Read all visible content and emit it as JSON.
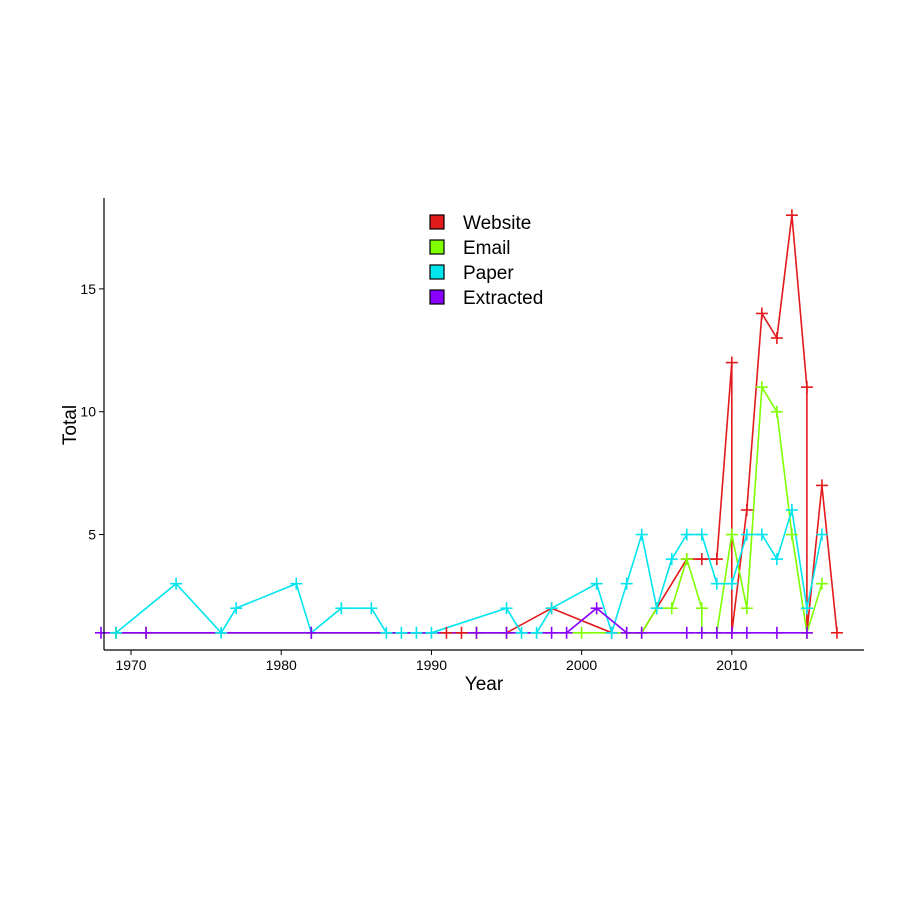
{
  "chart_data": {
    "type": "line",
    "title": "",
    "xlabel": "Year",
    "ylabel": "Total",
    "xlim": [
      1968.2,
      2018.8
    ],
    "ylim": [
      0.3,
      18.7
    ],
    "x_ticks": [
      1970,
      1980,
      1990,
      2000,
      2010
    ],
    "y_ticks": [
      5,
      10,
      15
    ],
    "grid": false,
    "marker": "plus",
    "legend": {
      "placement": "top-center",
      "entries": [
        "Website",
        "Email",
        "Paper",
        "Extracted"
      ]
    },
    "series": [
      {
        "name": "Website",
        "color": "#e31a1c",
        "points": [
          [
            1969,
            1
          ],
          [
            1971,
            1
          ],
          [
            1982,
            1
          ],
          [
            1991,
            1
          ],
          [
            1992,
            1
          ],
          [
            1993,
            1
          ],
          [
            1995,
            1
          ],
          [
            1998,
            2
          ],
          [
            2002,
            1
          ],
          [
            2004,
            1
          ],
          [
            2005,
            2
          ],
          [
            2007,
            4
          ],
          [
            2008,
            4
          ],
          [
            2009,
            4
          ],
          [
            2010,
            12
          ],
          [
            2010,
            1
          ],
          [
            2011,
            6
          ],
          [
            2012,
            14
          ],
          [
            2013,
            13
          ],
          [
            2014,
            18
          ],
          [
            2015,
            11
          ],
          [
            2015,
            1
          ],
          [
            2016,
            7
          ],
          [
            2017,
            1
          ]
        ]
      },
      {
        "name": "Email",
        "color": "#7fff00",
        "points": [
          [
            1969,
            1
          ],
          [
            1971,
            1
          ],
          [
            1982,
            1
          ],
          [
            1993,
            1
          ],
          [
            1995,
            1
          ],
          [
            2000,
            1
          ],
          [
            2003,
            1
          ],
          [
            2004,
            1
          ],
          [
            2005,
            2
          ],
          [
            2006,
            2
          ],
          [
            2007,
            4
          ],
          [
            2008,
            2
          ],
          [
            2008,
            1
          ],
          [
            2009,
            1
          ],
          [
            2010,
            5
          ],
          [
            2011,
            2
          ],
          [
            2012,
            11
          ],
          [
            2013,
            10
          ],
          [
            2014,
            5
          ],
          [
            2015,
            1
          ],
          [
            2016,
            3
          ]
        ]
      },
      {
        "name": "Paper",
        "color": "#00e5ee",
        "points": [
          [
            1969,
            1
          ],
          [
            1973,
            3
          ],
          [
            1976,
            1
          ],
          [
            1977,
            2
          ],
          [
            1981,
            3
          ],
          [
            1982,
            1
          ],
          [
            1984,
            2
          ],
          [
            1986,
            2
          ],
          [
            1987,
            1
          ],
          [
            1988,
            1
          ],
          [
            1989,
            1
          ],
          [
            1990,
            1
          ],
          [
            1995,
            2
          ],
          [
            1996,
            1
          ],
          [
            1997,
            1
          ],
          [
            1998,
            2
          ],
          [
            2001,
            3
          ],
          [
            2002,
            1
          ],
          [
            2003,
            3
          ],
          [
            2004,
            5
          ],
          [
            2005,
            2
          ],
          [
            2006,
            4
          ],
          [
            2007,
            5
          ],
          [
            2008,
            5
          ],
          [
            2009,
            3
          ],
          [
            2010,
            3
          ],
          [
            2011,
            5
          ],
          [
            2012,
            5
          ],
          [
            2013,
            4
          ],
          [
            2014,
            6
          ],
          [
            2015,
            2
          ],
          [
            2016,
            5
          ]
        ]
      },
      {
        "name": "Extracted",
        "color": "#8a00ff",
        "points": [
          [
            1968,
            1
          ],
          [
            1971,
            1
          ],
          [
            1982,
            1
          ],
          [
            1993,
            1
          ],
          [
            1995,
            1
          ],
          [
            1998,
            1
          ],
          [
            1999,
            1
          ],
          [
            2001,
            2
          ],
          [
            2003,
            1
          ],
          [
            2004,
            1
          ],
          [
            2007,
            1
          ],
          [
            2008,
            1
          ],
          [
            2009,
            1
          ],
          [
            2010,
            1
          ],
          [
            2011,
            1
          ],
          [
            2013,
            1
          ],
          [
            2015,
            1
          ]
        ]
      }
    ]
  }
}
